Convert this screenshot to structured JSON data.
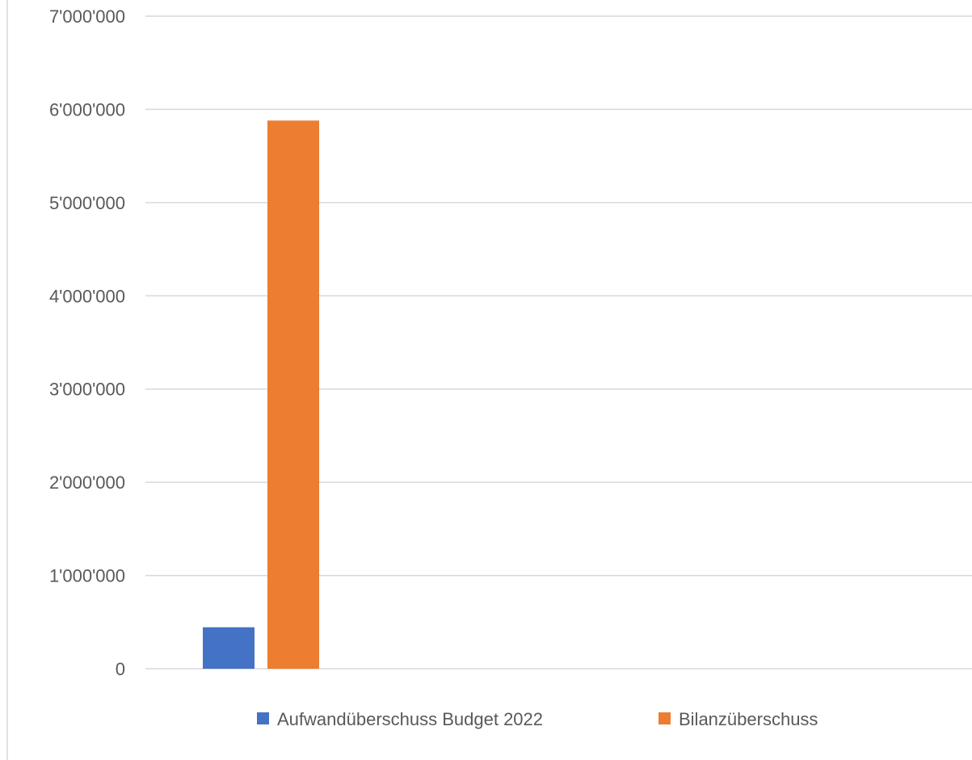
{
  "chart_data": {
    "type": "bar",
    "categories": [
      ""
    ],
    "series": [
      {
        "name": "Aufwandüberschuss Budget 2022",
        "values": [
          445000
        ],
        "color": "#4472C4"
      },
      {
        "name": "Bilanzüberschuss",
        "values": [
          5880000
        ],
        "color": "#ED7D31"
      }
    ],
    "ylim": [
      0,
      7000000
    ],
    "yticks": [
      0,
      1000000,
      2000000,
      3000000,
      4000000,
      5000000,
      6000000,
      7000000
    ],
    "ytick_labels": [
      "0",
      "1'000'000",
      "2'000'000",
      "3'000'000",
      "4'000'000",
      "5'000'000",
      "6'000'000",
      "7'000'000"
    ],
    "grid": true,
    "legend_position": "bottom",
    "title": "",
    "xlabel": "",
    "ylabel": ""
  },
  "colors": {
    "gridline": "#D9D9D9",
    "text": "#595959",
    "frame": "#D9D9D9"
  }
}
